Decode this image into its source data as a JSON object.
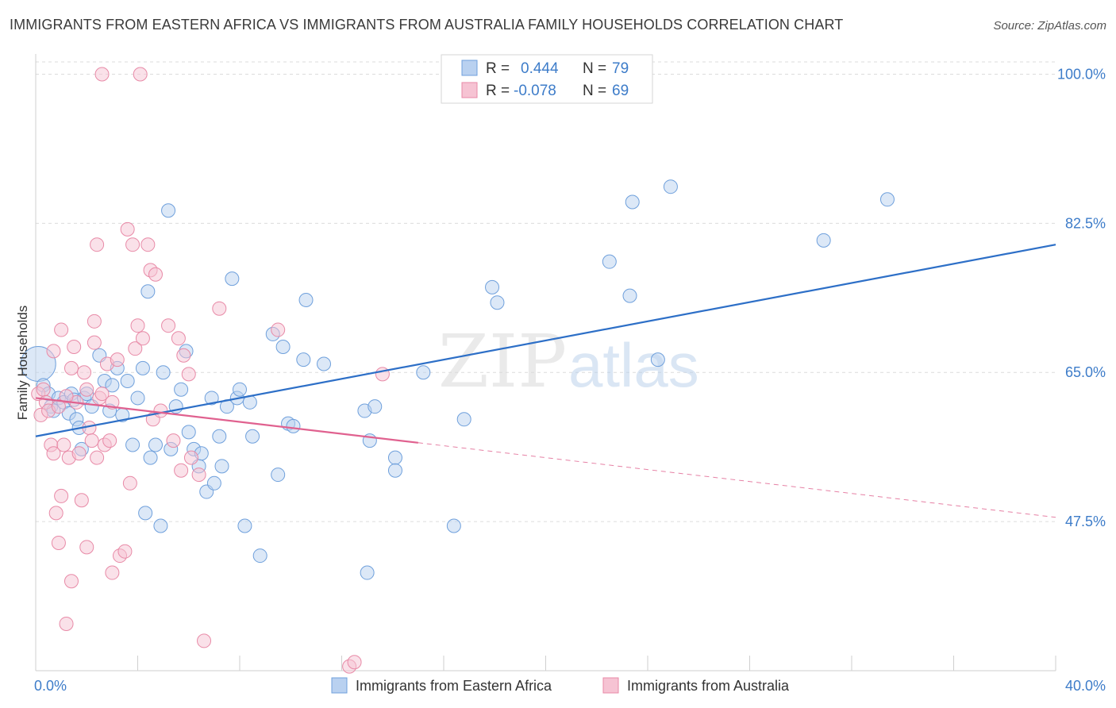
{
  "header": {
    "title": "IMMIGRANTS FROM EASTERN AFRICA VS IMMIGRANTS FROM AUSTRALIA FAMILY HOUSEHOLDS CORRELATION CHART",
    "source": "Source: ZipAtlas.com"
  },
  "watermark": {
    "zip": "ZIP",
    "atlas": "atlas"
  },
  "chart_data": {
    "type": "scatter",
    "ylabel": "Family Households",
    "xlim": [
      0,
      40
    ],
    "ylim": [
      30,
      102
    ],
    "y_ticks": [
      {
        "value": 47.5,
        "label": "47.5%"
      },
      {
        "value": 65.0,
        "label": "65.0%"
      },
      {
        "value": 82.5,
        "label": "82.5%"
      },
      {
        "value": 100.0,
        "label": "100.0%"
      }
    ],
    "x_ticks_minor": [
      0,
      4,
      8,
      12,
      16,
      20,
      24,
      28,
      32,
      36,
      40
    ],
    "x_labels": [
      {
        "value": 0,
        "label": "0.0%"
      },
      {
        "value": 40,
        "label": "40.0%"
      }
    ],
    "grid": true,
    "legend_position": "top-center",
    "legend": {
      "rows": [
        {
          "r_label": "R =",
          "r_value": "0.444",
          "n_label": "N =",
          "n_value": "79"
        },
        {
          "r_label": "R =",
          "r_value": "-0.078",
          "n_label": "N =",
          "n_value": "69"
        }
      ]
    },
    "series": [
      {
        "name": "Immigrants from Eastern Africa",
        "color": "#6fa0dc",
        "fill": "#b9d1f0",
        "trend": {
          "x0": 0,
          "y0": 57.5,
          "x1": 40,
          "y1": 80.0,
          "solid_to": 40
        },
        "points": [
          [
            0.1,
            66.0
          ],
          [
            0.3,
            63.5
          ],
          [
            0.5,
            62.5
          ],
          [
            0.6,
            61.0
          ],
          [
            0.7,
            60.5
          ],
          [
            0.9,
            62.0
          ],
          [
            1.1,
            61.5
          ],
          [
            1.3,
            60.2
          ],
          [
            1.4,
            62.5
          ],
          [
            1.5,
            61.8
          ],
          [
            1.6,
            59.5
          ],
          [
            1.7,
            58.5
          ],
          [
            1.8,
            56.0
          ],
          [
            1.9,
            62.0
          ],
          [
            2.0,
            62.5
          ],
          [
            2.2,
            61.0
          ],
          [
            2.5,
            67.0
          ],
          [
            2.7,
            64.0
          ],
          [
            2.9,
            60.5
          ],
          [
            3.0,
            63.5
          ],
          [
            3.2,
            65.5
          ],
          [
            3.4,
            60.0
          ],
          [
            3.6,
            64.0
          ],
          [
            3.8,
            56.5
          ],
          [
            4.0,
            62.0
          ],
          [
            4.2,
            65.5
          ],
          [
            4.3,
            48.5
          ],
          [
            4.4,
            74.5
          ],
          [
            4.5,
            55.0
          ],
          [
            4.7,
            56.5
          ],
          [
            4.9,
            47.0
          ],
          [
            5.0,
            65.0
          ],
          [
            5.2,
            84.0
          ],
          [
            5.3,
            56.0
          ],
          [
            5.5,
            61.0
          ],
          [
            5.7,
            63.0
          ],
          [
            5.9,
            67.5
          ],
          [
            6.0,
            58.0
          ],
          [
            6.2,
            56.0
          ],
          [
            6.4,
            54.0
          ],
          [
            6.5,
            55.5
          ],
          [
            6.7,
            51.0
          ],
          [
            6.9,
            62.0
          ],
          [
            7.0,
            52.0
          ],
          [
            7.2,
            57.5
          ],
          [
            7.3,
            54.0
          ],
          [
            7.5,
            61.0
          ],
          [
            7.7,
            76.0
          ],
          [
            7.9,
            62.0
          ],
          [
            8.0,
            63.0
          ],
          [
            8.2,
            47.0
          ],
          [
            8.4,
            61.5
          ],
          [
            8.5,
            57.5
          ],
          [
            8.8,
            43.5
          ],
          [
            9.3,
            69.5
          ],
          [
            9.5,
            53.0
          ],
          [
            9.7,
            68.0
          ],
          [
            9.9,
            59.0
          ],
          [
            10.1,
            58.7
          ],
          [
            10.5,
            66.5
          ],
          [
            10.6,
            73.5
          ],
          [
            11.3,
            66.0
          ],
          [
            12.9,
            60.5
          ],
          [
            13.0,
            41.5
          ],
          [
            13.1,
            57.0
          ],
          [
            13.3,
            61.0
          ],
          [
            14.1,
            55.0
          ],
          [
            14.1,
            53.5
          ],
          [
            15.2,
            65.0
          ],
          [
            16.4,
            47.0
          ],
          [
            16.8,
            59.5
          ],
          [
            17.9,
            75.0
          ],
          [
            18.1,
            73.2
          ],
          [
            22.5,
            78.0
          ],
          [
            23.3,
            74.0
          ],
          [
            23.4,
            85.0
          ],
          [
            24.4,
            66.5
          ],
          [
            24.9,
            86.8
          ],
          [
            30.9,
            80.5
          ],
          [
            33.4,
            85.3
          ]
        ]
      },
      {
        "name": "Immigrants from Australia",
        "color": "#e88aa7",
        "fill": "#f6c3d3",
        "trend": {
          "x0": 0,
          "y0": 62.0,
          "x1": 40,
          "y1": 48.0,
          "solid_to": 15
        },
        "points": [
          [
            0.1,
            62.5
          ],
          [
            0.2,
            60.0
          ],
          [
            0.3,
            63.0
          ],
          [
            0.4,
            61.5
          ],
          [
            0.5,
            60.5
          ],
          [
            0.6,
            56.5
          ],
          [
            0.7,
            67.5
          ],
          [
            0.7,
            55.5
          ],
          [
            0.8,
            48.5
          ],
          [
            0.9,
            45.0
          ],
          [
            1.0,
            70.0
          ],
          [
            1.0,
            50.5
          ],
          [
            1.1,
            56.5
          ],
          [
            1.2,
            35.5
          ],
          [
            1.3,
            55.0
          ],
          [
            1.4,
            65.5
          ],
          [
            1.4,
            40.5
          ],
          [
            1.5,
            68.0
          ],
          [
            1.6,
            61.5
          ],
          [
            1.7,
            55.5
          ],
          [
            1.8,
            50.0
          ],
          [
            1.9,
            65.0
          ],
          [
            2.0,
            44.5
          ],
          [
            2.1,
            58.5
          ],
          [
            2.2,
            57.0
          ],
          [
            2.3,
            68.5
          ],
          [
            2.3,
            71.0
          ],
          [
            2.4,
            80.0
          ],
          [
            2.4,
            55.0
          ],
          [
            2.5,
            62.0
          ],
          [
            2.6,
            62.5
          ],
          [
            2.7,
            56.5
          ],
          [
            2.8,
            66.0
          ],
          [
            2.9,
            57.0
          ],
          [
            3.0,
            41.5
          ],
          [
            3.0,
            61.5
          ],
          [
            3.2,
            66.5
          ],
          [
            3.3,
            43.5
          ],
          [
            3.5,
            44.0
          ],
          [
            3.6,
            81.8
          ],
          [
            3.7,
            52.0
          ],
          [
            3.8,
            80.0
          ],
          [
            3.9,
            67.8
          ],
          [
            4.0,
            70.5
          ],
          [
            4.2,
            69.0
          ],
          [
            4.4,
            80.0
          ],
          [
            4.5,
            77.0
          ],
          [
            4.6,
            59.5
          ],
          [
            4.7,
            76.5
          ],
          [
            4.9,
            60.5
          ],
          [
            5.2,
            70.5
          ],
          [
            5.4,
            57.0
          ],
          [
            5.6,
            69.0
          ],
          [
            5.7,
            53.5
          ],
          [
            5.8,
            67.0
          ],
          [
            6.0,
            64.8
          ],
          [
            6.1,
            55.0
          ],
          [
            6.4,
            53.0
          ],
          [
            6.6,
            33.5
          ],
          [
            7.2,
            72.5
          ],
          [
            9.5,
            70.0
          ],
          [
            12.3,
            30.5
          ],
          [
            12.5,
            31.0
          ],
          [
            13.6,
            64.8
          ],
          [
            4.1,
            100.0
          ],
          [
            2.6,
            100.0
          ],
          [
            2.0,
            63.0
          ],
          [
            1.2,
            62.2
          ],
          [
            0.9,
            61.0
          ]
        ]
      }
    ]
  }
}
